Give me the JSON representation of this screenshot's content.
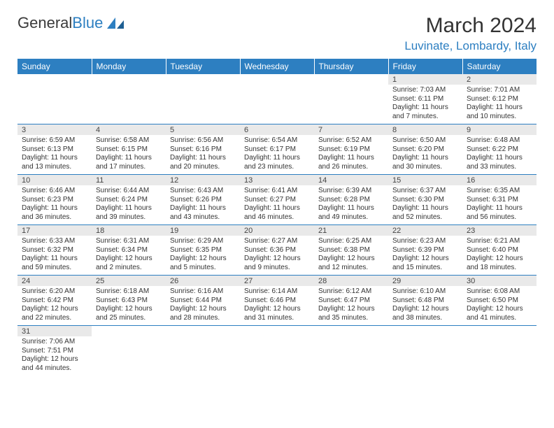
{
  "brand": {
    "part1": "General",
    "part2": "Blue"
  },
  "title": "March 2024",
  "location": "Luvinate, Lombardy, Italy",
  "colors": {
    "header_bg": "#2d7fc1",
    "header_fg": "#ffffff",
    "daynum_bg": "#e9e9e9",
    "border": "#2d7fc1",
    "title_color": "#333333",
    "location_color": "#2d7fc1"
  },
  "columns": [
    "Sunday",
    "Monday",
    "Tuesday",
    "Wednesday",
    "Thursday",
    "Friday",
    "Saturday"
  ],
  "weeks": [
    [
      null,
      null,
      null,
      null,
      null,
      {
        "n": "1",
        "sr": "Sunrise: 7:03 AM",
        "ss": "Sunset: 6:11 PM",
        "dl": "Daylight: 11 hours and 7 minutes."
      },
      {
        "n": "2",
        "sr": "Sunrise: 7:01 AM",
        "ss": "Sunset: 6:12 PM",
        "dl": "Daylight: 11 hours and 10 minutes."
      }
    ],
    [
      {
        "n": "3",
        "sr": "Sunrise: 6:59 AM",
        "ss": "Sunset: 6:13 PM",
        "dl": "Daylight: 11 hours and 13 minutes."
      },
      {
        "n": "4",
        "sr": "Sunrise: 6:58 AM",
        "ss": "Sunset: 6:15 PM",
        "dl": "Daylight: 11 hours and 17 minutes."
      },
      {
        "n": "5",
        "sr": "Sunrise: 6:56 AM",
        "ss": "Sunset: 6:16 PM",
        "dl": "Daylight: 11 hours and 20 minutes."
      },
      {
        "n": "6",
        "sr": "Sunrise: 6:54 AM",
        "ss": "Sunset: 6:17 PM",
        "dl": "Daylight: 11 hours and 23 minutes."
      },
      {
        "n": "7",
        "sr": "Sunrise: 6:52 AM",
        "ss": "Sunset: 6:19 PM",
        "dl": "Daylight: 11 hours and 26 minutes."
      },
      {
        "n": "8",
        "sr": "Sunrise: 6:50 AM",
        "ss": "Sunset: 6:20 PM",
        "dl": "Daylight: 11 hours and 30 minutes."
      },
      {
        "n": "9",
        "sr": "Sunrise: 6:48 AM",
        "ss": "Sunset: 6:22 PM",
        "dl": "Daylight: 11 hours and 33 minutes."
      }
    ],
    [
      {
        "n": "10",
        "sr": "Sunrise: 6:46 AM",
        "ss": "Sunset: 6:23 PM",
        "dl": "Daylight: 11 hours and 36 minutes."
      },
      {
        "n": "11",
        "sr": "Sunrise: 6:44 AM",
        "ss": "Sunset: 6:24 PM",
        "dl": "Daylight: 11 hours and 39 minutes."
      },
      {
        "n": "12",
        "sr": "Sunrise: 6:43 AM",
        "ss": "Sunset: 6:26 PM",
        "dl": "Daylight: 11 hours and 43 minutes."
      },
      {
        "n": "13",
        "sr": "Sunrise: 6:41 AM",
        "ss": "Sunset: 6:27 PM",
        "dl": "Daylight: 11 hours and 46 minutes."
      },
      {
        "n": "14",
        "sr": "Sunrise: 6:39 AM",
        "ss": "Sunset: 6:28 PM",
        "dl": "Daylight: 11 hours and 49 minutes."
      },
      {
        "n": "15",
        "sr": "Sunrise: 6:37 AM",
        "ss": "Sunset: 6:30 PM",
        "dl": "Daylight: 11 hours and 52 minutes."
      },
      {
        "n": "16",
        "sr": "Sunrise: 6:35 AM",
        "ss": "Sunset: 6:31 PM",
        "dl": "Daylight: 11 hours and 56 minutes."
      }
    ],
    [
      {
        "n": "17",
        "sr": "Sunrise: 6:33 AM",
        "ss": "Sunset: 6:32 PM",
        "dl": "Daylight: 11 hours and 59 minutes."
      },
      {
        "n": "18",
        "sr": "Sunrise: 6:31 AM",
        "ss": "Sunset: 6:34 PM",
        "dl": "Daylight: 12 hours and 2 minutes."
      },
      {
        "n": "19",
        "sr": "Sunrise: 6:29 AM",
        "ss": "Sunset: 6:35 PM",
        "dl": "Daylight: 12 hours and 5 minutes."
      },
      {
        "n": "20",
        "sr": "Sunrise: 6:27 AM",
        "ss": "Sunset: 6:36 PM",
        "dl": "Daylight: 12 hours and 9 minutes."
      },
      {
        "n": "21",
        "sr": "Sunrise: 6:25 AM",
        "ss": "Sunset: 6:38 PM",
        "dl": "Daylight: 12 hours and 12 minutes."
      },
      {
        "n": "22",
        "sr": "Sunrise: 6:23 AM",
        "ss": "Sunset: 6:39 PM",
        "dl": "Daylight: 12 hours and 15 minutes."
      },
      {
        "n": "23",
        "sr": "Sunrise: 6:21 AM",
        "ss": "Sunset: 6:40 PM",
        "dl": "Daylight: 12 hours and 18 minutes."
      }
    ],
    [
      {
        "n": "24",
        "sr": "Sunrise: 6:20 AM",
        "ss": "Sunset: 6:42 PM",
        "dl": "Daylight: 12 hours and 22 minutes."
      },
      {
        "n": "25",
        "sr": "Sunrise: 6:18 AM",
        "ss": "Sunset: 6:43 PM",
        "dl": "Daylight: 12 hours and 25 minutes."
      },
      {
        "n": "26",
        "sr": "Sunrise: 6:16 AM",
        "ss": "Sunset: 6:44 PM",
        "dl": "Daylight: 12 hours and 28 minutes."
      },
      {
        "n": "27",
        "sr": "Sunrise: 6:14 AM",
        "ss": "Sunset: 6:46 PM",
        "dl": "Daylight: 12 hours and 31 minutes."
      },
      {
        "n": "28",
        "sr": "Sunrise: 6:12 AM",
        "ss": "Sunset: 6:47 PM",
        "dl": "Daylight: 12 hours and 35 minutes."
      },
      {
        "n": "29",
        "sr": "Sunrise: 6:10 AM",
        "ss": "Sunset: 6:48 PM",
        "dl": "Daylight: 12 hours and 38 minutes."
      },
      {
        "n": "30",
        "sr": "Sunrise: 6:08 AM",
        "ss": "Sunset: 6:50 PM",
        "dl": "Daylight: 12 hours and 41 minutes."
      }
    ],
    [
      {
        "n": "31",
        "sr": "Sunrise: 7:06 AM",
        "ss": "Sunset: 7:51 PM",
        "dl": "Daylight: 12 hours and 44 minutes."
      },
      null,
      null,
      null,
      null,
      null,
      null
    ]
  ]
}
